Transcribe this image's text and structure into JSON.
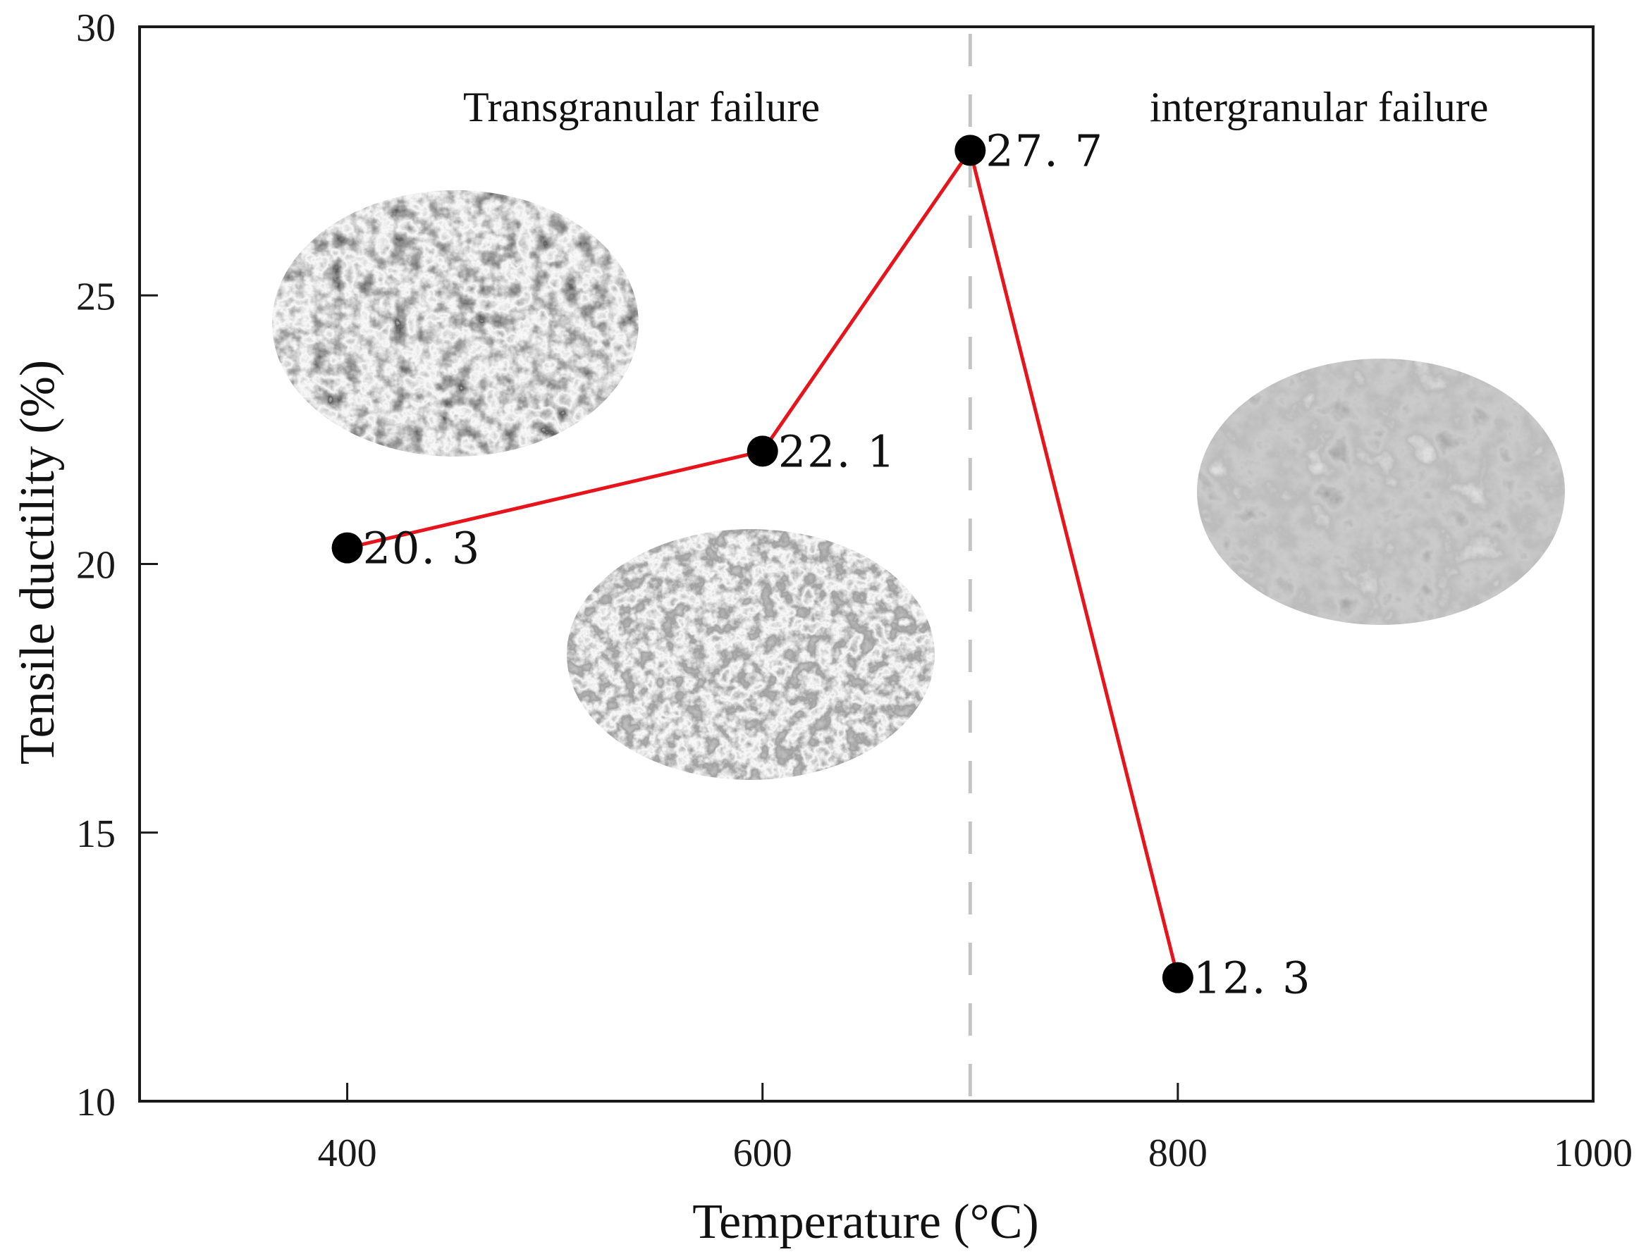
{
  "chart_data": {
    "type": "line",
    "title": "",
    "xlabel": "Temperature (°C)",
    "ylabel": "Tensile ductility (%)",
    "xlim": [
      300,
      1000
    ],
    "ylim": [
      10,
      30
    ],
    "x_ticks": [
      400,
      600,
      800,
      1000
    ],
    "y_ticks": [
      10,
      15,
      20,
      25,
      30
    ],
    "grid": false,
    "legend": null,
    "series": [
      {
        "name": "Tensile ductility",
        "color": "#e8141c",
        "marker": "circle",
        "marker_color": "#000000",
        "x": [
          400,
          600,
          700,
          800
        ],
        "values": [
          20.3,
          22.1,
          27.7,
          12.3
        ],
        "labels": [
          "20. 3",
          "22. 1",
          "27. 7",
          "12. 3"
        ]
      }
    ],
    "annotations": [
      {
        "type": "vline",
        "x": 700,
        "style": "dashed",
        "color": "#c4c4c4"
      },
      {
        "type": "text",
        "text": "Transgranular failure",
        "region": "left of 700 °C"
      },
      {
        "type": "text",
        "text": "intergranular failure",
        "region": "right of 700 °C"
      },
      {
        "type": "image",
        "description": "SEM fractograph (dimpled transgranular fracture)",
        "shape": "ellipse",
        "near_x": 400
      },
      {
        "type": "image",
        "description": "SEM fractograph (transgranular fracture)",
        "shape": "ellipse",
        "near_x": 600
      },
      {
        "type": "image",
        "description": "SEM fractograph (intergranular fracture)",
        "shape": "ellipse",
        "near_x": 800
      }
    ]
  },
  "axes": {
    "x_tick_labels": [
      "400",
      "600",
      "800",
      "1000"
    ],
    "y_tick_labels": [
      "10",
      "15",
      "20",
      "25",
      "30"
    ],
    "x_title": "Temperature (°C)",
    "y_title": "Tensile ductility (%)"
  },
  "regions": {
    "left_label": "Transgranular failure",
    "right_label": "intergranular failure"
  },
  "colors": {
    "line": "#e8141c",
    "marker": "#000000",
    "divider": "#c4c4c4",
    "axis": "#1a1a1a"
  }
}
